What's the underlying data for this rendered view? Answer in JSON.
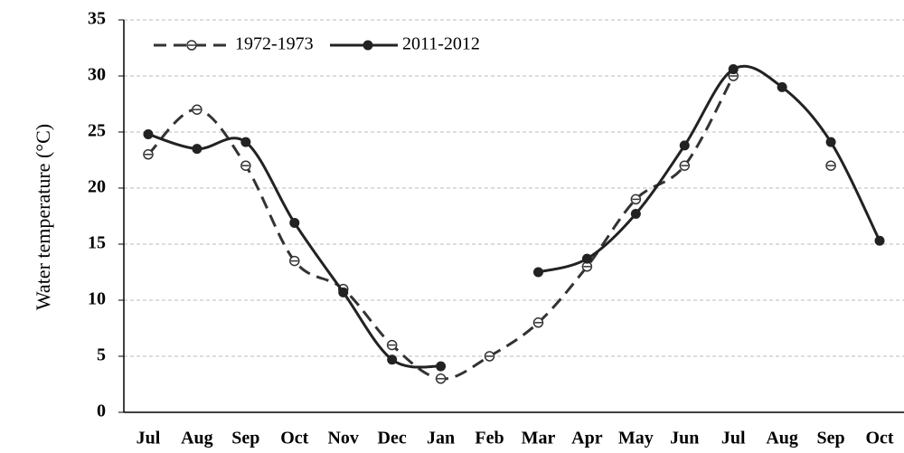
{
  "chart_data": {
    "type": "line",
    "y_label": "Water temperature (°C)",
    "categories": [
      "Jul",
      "Aug",
      "Sep",
      "Oct",
      "Nov",
      "Dec",
      "Jan",
      "Feb",
      "Mar",
      "Apr",
      "May",
      "Jun",
      "Jul",
      "Aug",
      "Sep",
      "Oct"
    ],
    "series": [
      {
        "name": "1972-1973",
        "color": "#333333",
        "dashed": true,
        "values": [
          23,
          27,
          22,
          13.5,
          11,
          6,
          3,
          5,
          8,
          13,
          19,
          22,
          30,
          null,
          22,
          null
        ]
      },
      {
        "name": "2011-2012",
        "color": "#222222",
        "dashed": false,
        "values": [
          24.8,
          23.5,
          24.1,
          16.9,
          10.7,
          4.7,
          4.1,
          null,
          12.5,
          13.7,
          17.7,
          23.8,
          30.6,
          29,
          24.1,
          15.3
        ]
      }
    ],
    "ylim": [
      0,
      35
    ],
    "yticks": [
      0,
      5,
      10,
      15,
      20,
      25,
      30,
      35
    ],
    "grid": true
  }
}
